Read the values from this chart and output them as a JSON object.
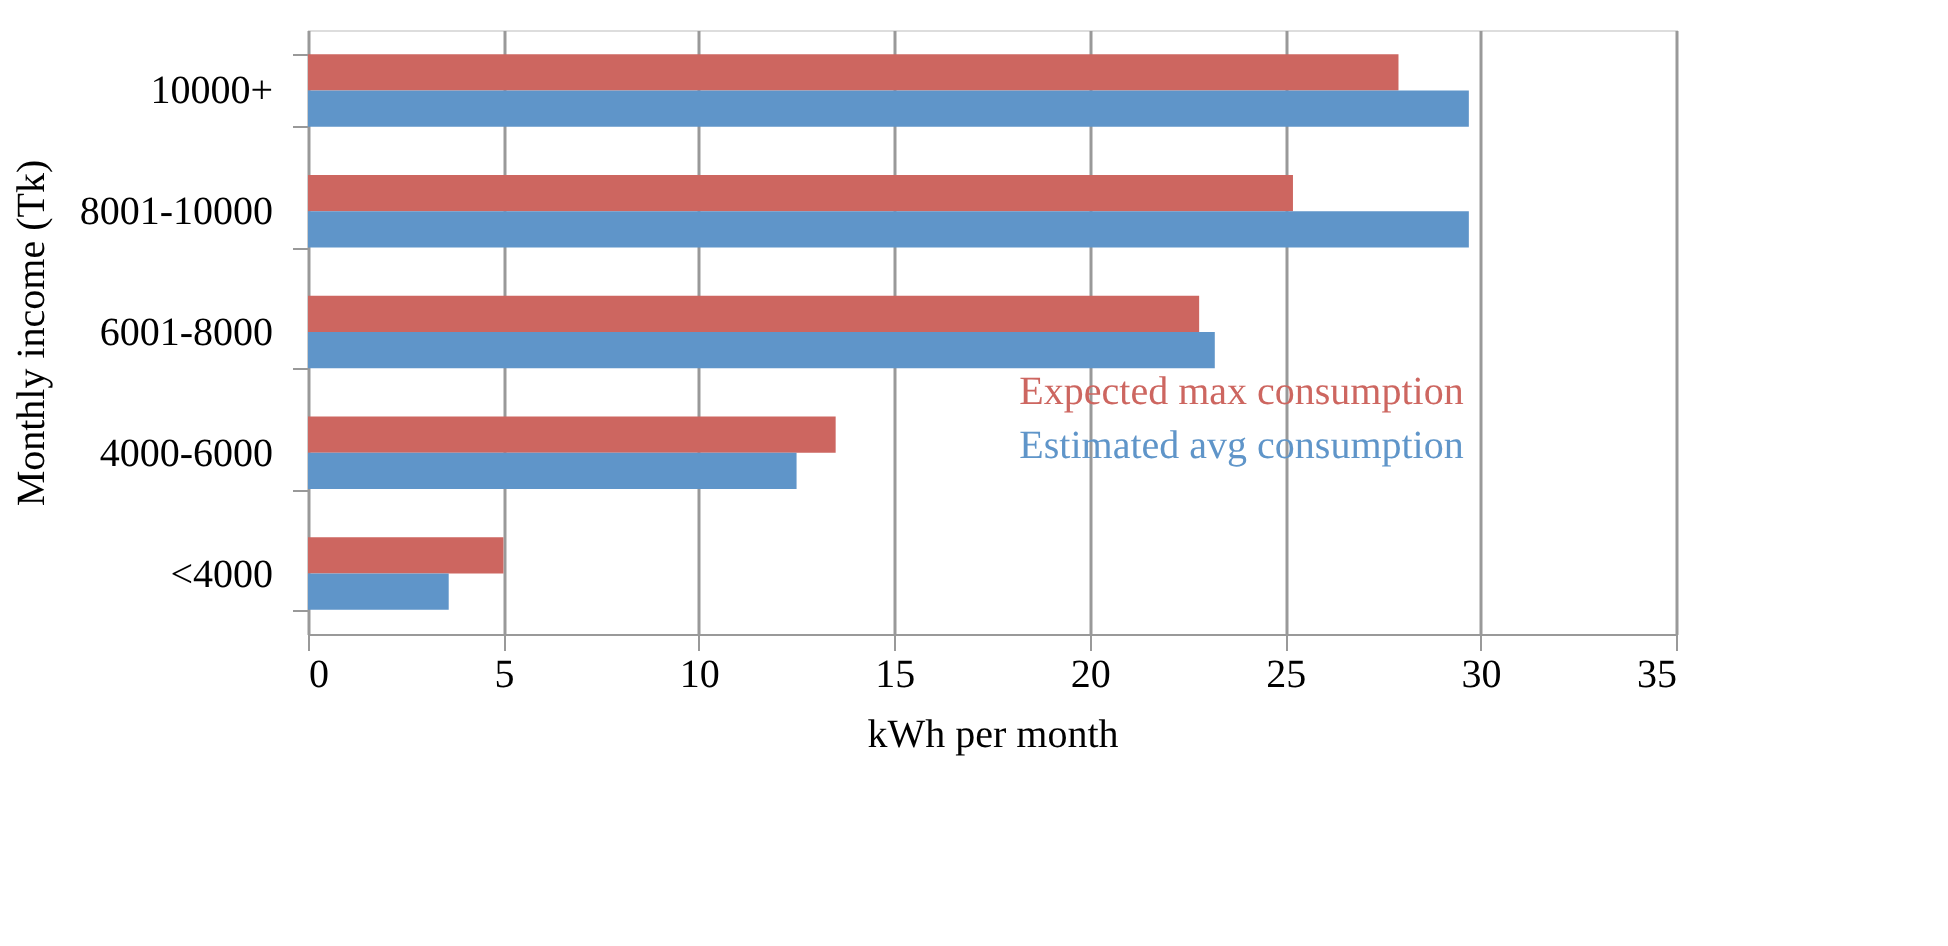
{
  "chart_data": {
    "type": "bar",
    "orientation": "horizontal",
    "categories": [
      "10000+",
      "8001-10000",
      "6001-8000",
      "4000-6000",
      "<4000"
    ],
    "series": [
      {
        "name": "Expected max consumption",
        "color": "#cd6660",
        "values": [
          27.9,
          25.2,
          22.8,
          13.5,
          5.0
        ]
      },
      {
        "name": "Estimated avg consumption",
        "color": "#5f95c9",
        "values": [
          29.7,
          29.7,
          23.2,
          12.5,
          3.6
        ]
      }
    ],
    "xlabel": "kWh per month",
    "ylabel": "Monthly income (Tk)",
    "xlim": [
      0,
      35
    ],
    "xticks": [
      0,
      5,
      10,
      15,
      20,
      25,
      30,
      35
    ],
    "grid": "x",
    "legend": "right"
  }
}
